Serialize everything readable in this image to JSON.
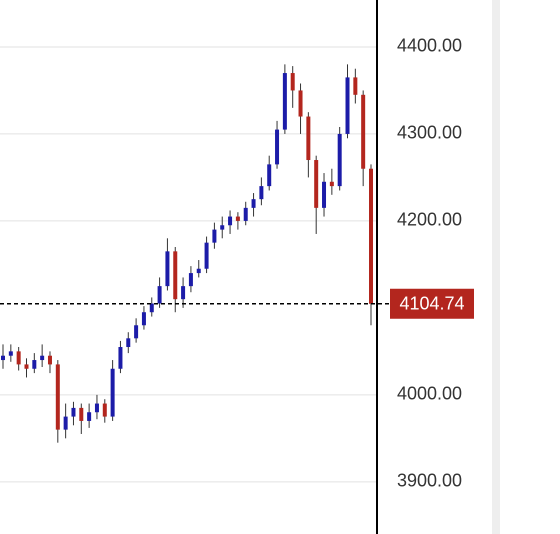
{
  "chart_data": {
    "type": "ohlc",
    "up_color": "#1c1ca8",
    "down_color": "#b3261e",
    "ylim": [
      3840,
      4454
    ],
    "yticks": [
      {
        "value": 3900,
        "label": "3900.00"
      },
      {
        "value": 4000,
        "label": "4000.00"
      },
      {
        "value": 4200,
        "label": "4200.00"
      },
      {
        "value": 4300,
        "label": "4300.00"
      },
      {
        "value": 4400,
        "label": "4400.00"
      }
    ],
    "grid": true,
    "open": [
      4040,
      4045,
      4050,
      4035,
      4030,
      4040,
      4045,
      4035,
      3960,
      3975,
      3985,
      3970,
      3980,
      3990,
      3975,
      4030,
      4055,
      4065,
      4080,
      4095,
      4105,
      4125,
      4165,
      4110,
      4125,
      4140,
      4145,
      4175,
      4190,
      4195,
      4205,
      4200,
      4215,
      4225,
      4240,
      4265,
      4305,
      4370,
      4350,
      4320,
      4270,
      4215,
      4245,
      4240,
      4300,
      4365,
      4345,
      4260
    ],
    "high": [
      4058,
      4058,
      4055,
      4042,
      4048,
      4058,
      4050,
      4040,
      3990,
      3992,
      3990,
      3990,
      4000,
      3995,
      4040,
      4062,
      4072,
      4088,
      4102,
      4112,
      4135,
      4180,
      4170,
      4135,
      4148,
      4155,
      4182,
      4198,
      4205,
      4212,
      4210,
      4222,
      4232,
      4250,
      4275,
      4315,
      4380,
      4378,
      4358,
      4325,
      4275,
      4255,
      4260,
      4308,
      4380,
      4375,
      4350,
      4265
    ],
    "low": [
      4030,
      4038,
      4028,
      4020,
      4025,
      4032,
      4025,
      3945,
      3950,
      3965,
      3955,
      3962,
      3972,
      3968,
      3970,
      4025,
      4048,
      4060,
      4075,
      4090,
      4100,
      4120,
      4095,
      4100,
      4118,
      4135,
      4140,
      4168,
      4180,
      4185,
      4190,
      4195,
      4205,
      4218,
      4235,
      4260,
      4300,
      4330,
      4300,
      4250,
      4185,
      4205,
      4230,
      4235,
      4295,
      4335,
      4240,
      4080
    ],
    "close": [
      4045,
      4050,
      4035,
      4030,
      4040,
      4045,
      4035,
      3960,
      3975,
      3985,
      3970,
      3980,
      3990,
      3975,
      4030,
      4055,
      4065,
      4080,
      4095,
      4105,
      4125,
      4165,
      4110,
      4125,
      4140,
      4145,
      4175,
      4190,
      4195,
      4205,
      4200,
      4215,
      4225,
      4240,
      4265,
      4305,
      4370,
      4350,
      4320,
      4270,
      4215,
      4245,
      4240,
      4300,
      4365,
      4345,
      4260,
      4104.74
    ]
  }
}
